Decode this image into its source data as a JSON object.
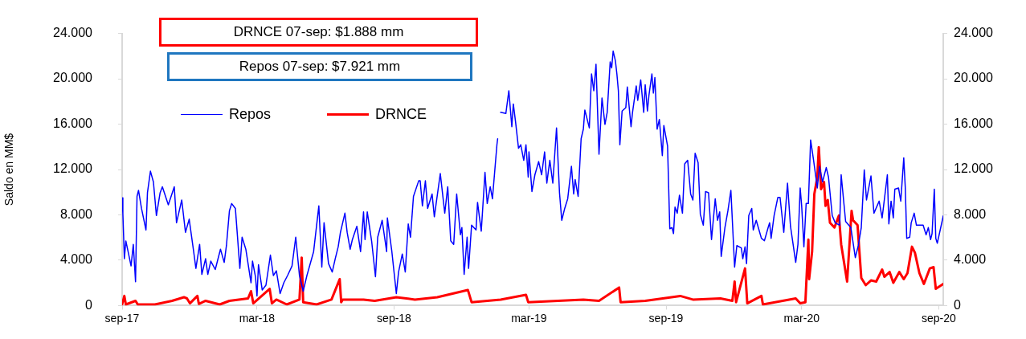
{
  "chart_data": {
    "type": "line",
    "ylabel": "Saldo en MM$",
    "annotations": [
      "DRNCE 07-sep: $1.888 mm",
      "Repos 07-sep: $7.921 mm"
    ],
    "legend": "top left",
    "xlim": [
      "2017-09-01",
      "2020-09-07"
    ],
    "xticks": [
      {
        "value": "2017-09-01",
        "label": "sep-17"
      },
      {
        "value": "2018-03-01",
        "label": "mar-18"
      },
      {
        "value": "2018-09-01",
        "label": "sep-18"
      },
      {
        "value": "2019-03-01",
        "label": "mar-19"
      },
      {
        "value": "2019-09-01",
        "label": "sep-19"
      },
      {
        "value": "2020-03-01",
        "label": "mar-20"
      },
      {
        "value": "2020-09-01",
        "label": "sep-20"
      }
    ],
    "ylim": [
      0,
      24000
    ],
    "yticks": [
      0,
      {
        "value": 4000,
        "label": "4.000"
      },
      {
        "value": 8000,
        "label": "8.000"
      },
      {
        "value": 12000,
        "label": "12.000"
      },
      {
        "value": 16000,
        "label": "16.000"
      },
      {
        "value": 20000,
        "label": "20.000"
      },
      {
        "value": 24000,
        "label": "24.000"
      }
    ],
    "y2lim": [
      0,
      24000
    ],
    "y2ticks": [
      0,
      {
        "value": 4000,
        "label": "4.000"
      },
      {
        "value": 8000,
        "label": "8.000"
      },
      {
        "value": 12000,
        "label": "12.000"
      },
      {
        "value": 16000,
        "label": "16.000"
      },
      {
        "value": 20000,
        "label": "20.000"
      },
      {
        "value": 24000,
        "label": "24.000"
      }
    ],
    "series": [
      {
        "name": "Repos",
        "color": "#0000ff",
        "x": [
          "2017-09-01",
          "2017-09-02",
          "2017-09-04",
          "2017-09-06",
          "2017-09-09",
          "2017-09-13",
          "2017-09-16",
          "2017-09-19",
          "2017-09-21",
          "2017-09-23",
          "2017-09-27",
          "2017-10-03",
          "2017-10-05",
          "2017-10-09",
          "2017-10-13",
          "2017-10-17",
          "2017-10-22",
          "2017-10-25",
          "2017-11-02",
          "2017-11-10",
          "2017-11-13",
          "2017-11-20",
          "2017-11-25",
          "2017-11-30",
          "2017-12-06",
          "2017-12-09",
          "2017-12-14",
          "2017-12-17",
          "2017-12-22",
          "2017-12-25",
          "2017-12-29",
          "2018-01-04",
          "2018-01-11",
          "2018-01-16",
          "2018-01-19",
          "2018-01-23",
          "2018-01-26",
          "2018-01-31",
          "2018-02-06",
          "2018-02-09",
          "2018-02-14",
          "2018-02-21",
          "2018-02-23",
          "2018-02-27",
          "2018-03-01",
          "2018-03-03",
          "2018-03-08",
          "2018-03-13",
          "2018-03-19",
          "2018-03-23",
          "2018-03-27",
          "2018-04-01",
          "2018-04-06",
          "2018-04-11",
          "2018-04-17",
          "2018-04-22",
          "2018-04-27",
          "2018-05-02",
          "2018-05-07",
          "2018-05-16",
          "2018-05-23",
          "2018-05-27",
          "2018-05-30",
          "2018-06-05",
          "2018-06-10",
          "2018-06-14",
          "2018-06-18",
          "2018-06-21",
          "2018-06-27",
          "2018-06-30",
          "2018-07-04",
          "2018-07-07",
          "2018-07-13",
          "2018-07-18",
          "2018-07-22",
          "2018-07-24",
          "2018-07-27",
          "2018-08-02",
          "2018-08-07",
          "2018-08-10",
          "2018-08-16",
          "2018-08-22",
          "2018-08-23",
          "2018-08-29",
          "2018-09-04",
          "2018-09-07",
          "2018-09-12",
          "2018-09-16",
          "2018-09-20",
          "2018-09-23",
          "2018-09-27",
          "2018-10-04",
          "2018-10-06",
          "2018-10-09",
          "2018-10-13",
          "2018-10-16",
          "2018-10-22",
          "2018-10-25",
          "2018-11-02",
          "2018-11-08",
          "2018-11-12",
          "2018-11-16",
          "2018-11-20",
          "2018-11-24",
          "2018-11-29",
          "2018-12-01",
          "2018-12-04",
          "2018-12-08",
          "2018-12-10",
          "2018-12-14",
          "2018-12-20",
          "2018-12-22",
          "2018-12-27",
          "2019-01-01",
          "2019-01-04",
          "2019-01-08",
          "2019-01-11",
          "2019-01-17",
          "2019-01-18",
          "2019-01-20",
          "2019-01-22",
          "2019-01-29",
          "2019-02-02",
          "2019-02-06",
          "2019-02-08",
          "2019-02-11",
          "2019-02-15",
          "2019-02-18",
          "2019-02-22",
          "2019-02-25",
          "2019-02-28",
          "2019-03-01",
          "2019-03-05",
          "2019-03-09",
          "2019-03-14",
          "2019-03-18",
          "2019-03-22",
          "2019-03-25",
          "2019-03-29",
          "2019-04-02",
          "2019-04-07",
          "2019-04-11",
          "2019-04-14",
          "2019-04-18",
          "2019-04-22",
          "2019-04-27",
          "2019-04-30",
          "2019-05-02",
          "2019-05-06",
          "2019-05-10",
          "2019-05-13",
          "2019-05-15",
          "2019-05-21",
          "2019-05-24",
          "2019-05-27",
          "2019-05-30",
          "2019-06-03",
          "2019-06-07",
          "2019-06-11",
          "2019-06-14",
          "2019-06-18",
          "2019-06-20",
          "2019-06-22",
          "2019-06-25",
          "2019-06-27",
          "2019-06-29",
          "2019-07-01",
          "2019-07-04",
          "2019-07-09",
          "2019-07-11",
          "2019-07-16",
          "2019-07-18",
          "2019-07-23",
          "2019-07-25",
          "2019-07-29",
          "2019-08-02",
          "2019-08-04",
          "2019-08-07",
          "2019-08-09",
          "2019-08-13",
          "2019-08-15",
          "2019-08-17",
          "2019-08-20",
          "2019-08-23",
          "2019-08-27",
          "2019-08-29",
          "2019-09-03",
          "2019-09-06",
          "2019-09-09",
          "2019-09-11",
          "2019-09-13",
          "2019-09-16",
          "2019-09-19",
          "2019-09-23",
          "2019-09-26",
          "2019-09-30",
          "2019-10-04",
          "2019-10-07",
          "2019-10-10",
          "2019-10-14",
          "2019-10-17",
          "2019-10-21",
          "2019-10-24",
          "2019-10-28",
          "2019-11-01",
          "2019-11-06",
          "2019-11-09",
          "2019-11-12",
          "2019-11-14",
          "2019-11-19",
          "2019-11-23",
          "2019-11-27",
          "2019-12-02",
          "2019-12-05",
          "2019-12-11",
          "2019-12-13",
          "2019-12-16",
          "2019-12-18",
          "2019-12-21",
          "2019-12-25",
          "2019-12-27",
          "2019-12-31",
          "2020-01-07",
          "2020-01-11",
          "2020-01-16",
          "2020-01-18",
          "2020-01-20",
          "2020-01-24",
          "2020-01-29",
          "2020-02-01",
          "2020-02-06",
          "2020-02-11",
          "2020-02-15",
          "2020-02-22",
          "2020-02-25",
          "2020-02-28",
          "2020-03-01",
          "2020-03-04",
          "2020-03-07",
          "2020-03-10",
          "2020-03-13",
          "2020-03-17",
          "2020-03-22",
          "2020-03-25",
          "2020-03-29",
          "2020-04-03",
          "2020-04-06",
          "2020-04-11",
          "2020-04-15",
          "2020-04-21",
          "2020-04-23",
          "2020-04-29",
          "2020-05-06",
          "2020-05-12",
          "2020-05-16",
          "2020-05-20",
          "2020-05-24",
          "2020-05-27",
          "2020-06-02",
          "2020-06-06",
          "2020-06-13",
          "2020-06-17",
          "2020-06-24",
          "2020-06-26",
          "2020-06-29",
          "2020-07-02",
          "2020-07-04",
          "2020-07-09",
          "2020-07-12",
          "2020-07-16",
          "2020-07-18",
          "2020-07-20",
          "2020-07-24",
          "2020-07-26",
          "2020-07-30",
          "2020-08-02",
          "2020-08-06",
          "2020-08-11",
          "2020-08-15",
          "2020-08-18",
          "2020-08-21",
          "2020-08-23",
          "2020-08-26",
          "2020-08-28",
          "2020-08-30",
          "2020-09-07"
        ],
        "values": [
          9500,
          8100,
          4130,
          5700,
          4760,
          3500,
          5400,
          2100,
          9630,
          10160,
          8570,
          6670,
          9950,
          11850,
          10900,
          7940,
          9950,
          10480,
          8890,
          10480,
          7300,
          9310,
          6460,
          7620,
          4760,
          3280,
          5400,
          2750,
          4130,
          2750,
          3920,
          3180,
          4970,
          3810,
          5290,
          8360,
          9000,
          8570,
          3280,
          6030,
          4970,
          2010,
          3920,
          2540,
          850,
          3600,
          1380,
          1800,
          4450,
          2650,
          3070,
          1060,
          2010,
          2650,
          3490,
          6030,
          2650,
          1270,
          2650,
          4760,
          8790,
          3390,
          7300,
          3700,
          2960,
          4130,
          5190,
          6460,
          8150,
          6460,
          4970,
          5820,
          6990,
          4760,
          8260,
          5820,
          8260,
          5610,
          2540,
          6030,
          7520,
          4760,
          7730,
          4760,
          1060,
          2960,
          4550,
          2960,
          7200,
          6030,
          9630,
          11000,
          11000,
          8790,
          11000,
          8570,
          9840,
          7830,
          11640,
          8150,
          10480,
          5720,
          5400,
          9840,
          6250,
          6880,
          2750,
          6030,
          3280,
          7090,
          6670,
          9100,
          6560,
          11750,
          9000,
          10480,
          9420,
          14180,
          14710,
          null,
          17040,
          16940,
          18950,
          15770,
          17780,
          16200,
          13870,
          14180,
          12810,
          14180,
          11330,
          13550,
          10060,
          11540,
          12700,
          11540,
          13550,
          10800,
          12810,
          10800,
          15670,
          9950,
          7520,
          8570,
          9420,
          12280,
          9840,
          11110,
          9630,
          14710,
          15560,
          17250,
          15670,
          20430,
          18950,
          21280,
          13340,
          18310,
          15980,
          17040,
          21490,
          20960,
          22440,
          21590,
          20430,
          18950,
          14180,
          17150,
          17460,
          19270,
          15770,
          17040,
          19370,
          18100,
          19900,
          17040,
          19480,
          17150,
          18520,
          20430,
          18740,
          20110,
          15560,
          16410,
          13230,
          15880,
          14080,
          6770,
          6880,
          6350,
          8680,
          8150,
          9740,
          8150,
          12490,
          12810,
          9840,
          9310,
          13440,
          12600,
          8040,
          7090,
          10060,
          9950,
          5820,
          9420,
          7520,
          8260,
          4340,
          6880,
          8360,
          10160,
          3390,
          5290,
          5080,
          4130,
          5190,
          3700,
          7940,
          8570,
          6670,
          7520,
          5930,
          5720,
          6880,
          7300,
          5930,
          7940,
          9530,
          9530,
          6460,
          10800,
          6990,
          3810,
          5400,
          10370,
          8790,
          5190,
          9000,
          9000,
          14610,
          12810,
          10370,
          12280,
          10900,
          12170,
          11330,
          7940,
          7300,
          7090,
          11540,
          7410,
          6880,
          4230,
          5290,
          6880,
          11960,
          9310,
          11430,
          8150,
          9210,
          7730,
          11540,
          7200,
          9210,
          7730,
          10270,
          10370,
          9210,
          13020,
          10480,
          5930,
          6030,
          7300,
          8150,
          7090,
          7090,
          7090,
          6250,
          6880,
          5820,
          6350,
          10270,
          5930,
          5500,
          7900
        ]
      },
      {
        "name": "DRNCE",
        "color": "#ff0000",
        "x": [
          "2017-09-01",
          "2017-09-04",
          "2017-09-06",
          "2017-09-19",
          "2017-09-22",
          "2017-10-15",
          "2017-11-07",
          "2017-11-23",
          "2017-11-27",
          "2017-12-01",
          "2017-12-11",
          "2017-12-13",
          "2017-12-22",
          "2018-01-10",
          "2018-01-23",
          "2018-02-17",
          "2018-02-21",
          "2018-02-24",
          "2018-03-18",
          "2018-03-21",
          "2018-03-27",
          "2018-04-10",
          "2018-04-27",
          "2018-04-30",
          "2018-05-02",
          "2018-05-20",
          "2018-06-09",
          "2018-06-20",
          "2018-06-22",
          "2018-06-24",
          "2018-07-22",
          "2018-08-06",
          "2018-09-04",
          "2018-09-29",
          "2018-10-29",
          "2018-12-09",
          "2018-12-14",
          "2019-01-22",
          "2019-02-25",
          "2019-02-28",
          "2019-05-13",
          "2019-06-03",
          "2019-06-30",
          "2019-07-02",
          "2019-08-04",
          "2019-09-20",
          "2019-10-07",
          "2019-11-13",
          "2019-11-29",
          "2019-12-02",
          "2019-12-04",
          "2019-12-16",
          "2019-12-19",
          "2020-01-07",
          "2020-01-09",
          "2020-02-22",
          "2020-02-28",
          "2020-03-06",
          "2020-03-10",
          "2020-03-11",
          "2020-03-15",
          "2020-03-18",
          "2020-03-22",
          "2020-03-24",
          "2020-03-27",
          "2020-03-31",
          "2020-04-02",
          "2020-04-05",
          "2020-04-08",
          "2020-04-14",
          "2020-04-20",
          "2020-04-23",
          "2020-05-01",
          "2020-05-07",
          "2020-05-09",
          "2020-05-15",
          "2020-05-20",
          "2020-05-26",
          "2020-06-02",
          "2020-06-09",
          "2020-06-17",
          "2020-06-20",
          "2020-06-27",
          "2020-07-02",
          "2020-07-10",
          "2020-07-16",
          "2020-07-21",
          "2020-07-27",
          "2020-07-31",
          "2020-08-06",
          "2020-08-12",
          "2020-08-20",
          "2020-08-25",
          "2020-08-28",
          "2020-09-07"
        ],
        "values": [
          100,
          850,
          100,
          420,
          100,
          100,
          420,
          740,
          630,
          200,
          850,
          150,
          420,
          100,
          420,
          630,
          1270,
          200,
          1480,
          200,
          530,
          100,
          530,
          4230,
          300,
          100,
          530,
          2330,
          300,
          530,
          530,
          420,
          740,
          530,
          740,
          1380,
          300,
          530,
          950,
          300,
          530,
          420,
          1590,
          300,
          420,
          850,
          530,
          630,
          420,
          2120,
          300,
          3280,
          200,
          850,
          100,
          630,
          200,
          300,
          5820,
          2330,
          4760,
          9840,
          11330,
          13970,
          10270,
          10900,
          8790,
          9310,
          7300,
          6880,
          7940,
          5400,
          2120,
          8360,
          7520,
          7090,
          2440,
          1800,
          2220,
          2120,
          3180,
          2540,
          2960,
          2010,
          2960,
          2330,
          2860,
          5190,
          4660,
          2860,
          1910,
          3280,
          3390,
          1480,
          1900
        ]
      }
    ]
  }
}
